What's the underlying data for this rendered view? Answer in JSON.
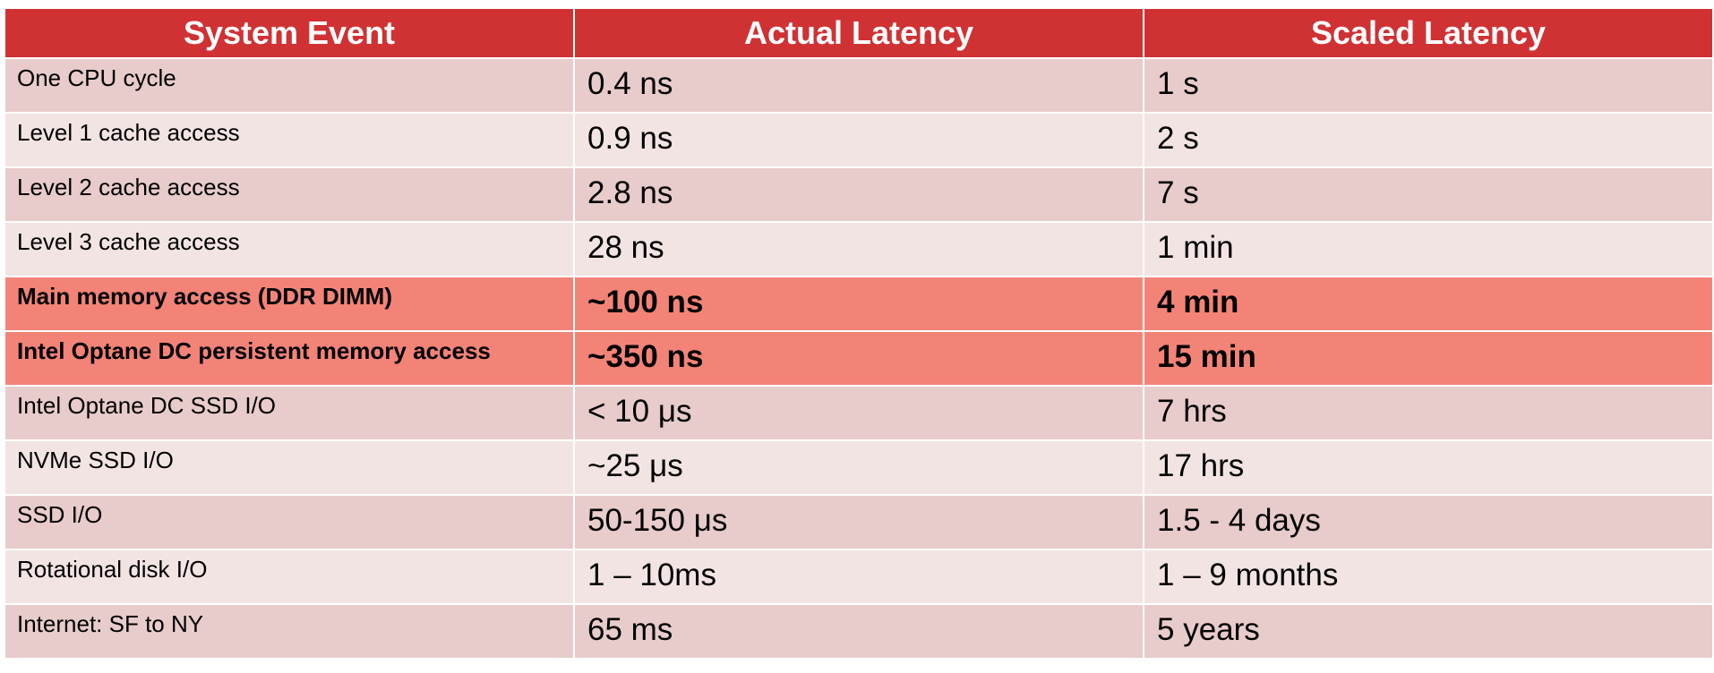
{
  "table": {
    "headers": [
      "System Event",
      "Actual Latency",
      "Scaled Latency"
    ],
    "rows": [
      {
        "event": "One CPU cycle",
        "actual": "0.4 ns",
        "scaled": "1 s",
        "highlight": false
      },
      {
        "event": "Level 1 cache access",
        "actual": "0.9 ns",
        "scaled": "2 s",
        "highlight": false
      },
      {
        "event": "Level 2 cache access",
        "actual": "2.8 ns",
        "scaled": "7 s",
        "highlight": false
      },
      {
        "event": "Level 3 cache access",
        "actual": "28 ns",
        "scaled": "1 min",
        "highlight": false
      },
      {
        "event": "Main memory access (DDR DIMM)",
        "actual": "~100 ns",
        "scaled": "4 min",
        "highlight": true
      },
      {
        "event": "Intel Optane DC persistent memory access",
        "actual": "~350 ns",
        "scaled": "15 min",
        "highlight": true
      },
      {
        "event": "Intel Optane DC SSD I/O",
        "actual": "< 10 μs",
        "scaled": "7 hrs",
        "highlight": false
      },
      {
        "event": "NVMe SSD I/O",
        "actual": "~25 μs",
        "scaled": "17 hrs",
        "highlight": false
      },
      {
        "event": "SSD I/O",
        "actual": "50-150 μs",
        "scaled": "1.5 - 4 days",
        "highlight": false
      },
      {
        "event": "Rotational disk I/O",
        "actual": "1 – 10ms",
        "scaled": "1 – 9 months",
        "highlight": false
      },
      {
        "event": "Internet: SF to NY",
        "actual": "65 ms",
        "scaled": "5 years",
        "highlight": false
      }
    ]
  },
  "colors": {
    "header_bg": "#d03234",
    "row_odd_bg": "#e8cbcb",
    "row_even_bg": "#f3e4e4",
    "highlight_bg": "#f38377"
  }
}
